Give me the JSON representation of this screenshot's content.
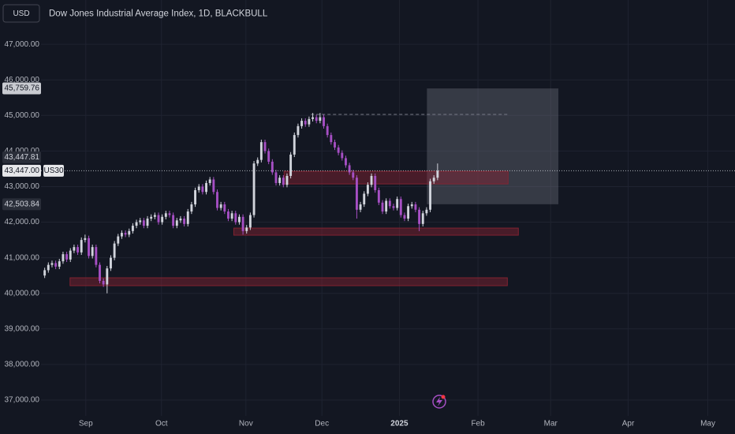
{
  "header": {
    "currency": "USD",
    "title": "Dow Jones Industrial Average Index, 1D, BLACKBULL"
  },
  "chart_data": {
    "type": "candlestick",
    "symbol": "US30",
    "open": [
      40500,
      40650,
      40800,
      40850,
      40750,
      40900,
      41100,
      40950,
      41200,
      41300,
      41150,
      41500,
      41550,
      41050,
      41300,
      40800,
      40350,
      40250,
      40700,
      41000,
      41400,
      41600,
      41700,
      41650,
      41750,
      41900,
      42000,
      42050,
      41900,
      42100,
      42150,
      42200,
      42000,
      42150,
      42250,
      42200,
      41900,
      42050,
      42100,
      41950,
      42300,
      42500,
      42900,
      43000,
      42850,
      43100,
      43200,
      42850,
      42400,
      42500,
      42300,
      42100,
      42250,
      42000,
      42150,
      41750,
      41850,
      42200,
      43650,
      43750,
      44250,
      44000,
      43700,
      43400,
      43100,
      43250,
      43050,
      43300,
      43900,
      44450,
      44700,
      44850,
      44750,
      44900,
      44950,
      44850,
      44950,
      44700,
      44450,
      44250,
      44100,
      43950,
      43800,
      43600,
      43400,
      43250,
      42350,
      42500,
      42800,
      43050,
      43300,
      42900,
      42550,
      42300,
      42600,
      42450,
      42400,
      42650,
      42200,
      42100,
      42450,
      42500,
      42350,
      41950,
      42250,
      42350,
      43150,
      43250
    ],
    "high": [
      40720,
      40870,
      40920,
      40920,
      40970,
      41170,
      41170,
      41270,
      41370,
      41370,
      41570,
      41650,
      41620,
      41370,
      41370,
      40870,
      40420,
      40770,
      41070,
      41470,
      41670,
      41770,
      41770,
      41820,
      41970,
      42070,
      42120,
      42120,
      42170,
      42220,
      42270,
      42270,
      42220,
      42320,
      42320,
      42270,
      42120,
      42170,
      42170,
      42370,
      42570,
      42970,
      43070,
      43070,
      43170,
      43270,
      43270,
      42920,
      42570,
      42570,
      42370,
      42320,
      42320,
      42220,
      42220,
      41920,
      42270,
      43720,
      43820,
      44320,
      44320,
      44070,
      43770,
      43470,
      43320,
      43320,
      43370,
      43970,
      44520,
      44770,
      44920,
      44920,
      44970,
      45070,
      45020,
      45070,
      45020,
      44770,
      44520,
      44320,
      44170,
      44020,
      43870,
      43670,
      43470,
      43320,
      42570,
      42870,
      43120,
      43370,
      43370,
      42970,
      42620,
      42670,
      42670,
      42520,
      42720,
      42720,
      42270,
      42520,
      42570,
      42570,
      42420,
      42320,
      42420,
      43220,
      43320,
      43650
    ],
    "low": [
      40430,
      40580,
      40730,
      40680,
      40680,
      40830,
      40880,
      40880,
      41130,
      41080,
      41080,
      41430,
      40980,
      40980,
      40730,
      40280,
      40180,
      40000,
      40630,
      40930,
      41330,
      41530,
      41580,
      41580,
      41680,
      41830,
      41930,
      41830,
      41830,
      42030,
      42080,
      41930,
      41930,
      42080,
      42130,
      41830,
      41830,
      41980,
      41880,
      41880,
      42230,
      42430,
      42830,
      42780,
      42780,
      43030,
      42780,
      42330,
      42330,
      42230,
      42030,
      42030,
      41930,
      41930,
      41650,
      41680,
      41780,
      42130,
      43580,
      43680,
      43930,
      43630,
      43330,
      43030,
      43030,
      42980,
      42980,
      43230,
      43830,
      44380,
      44630,
      44680,
      44680,
      44830,
      44780,
      44780,
      44630,
      44380,
      44180,
      44030,
      43880,
      43730,
      43530,
      43330,
      43180,
      42100,
      42280,
      42430,
      42730,
      42980,
      42830,
      42480,
      42230,
      42230,
      42380,
      42330,
      42330,
      42130,
      42030,
      42030,
      42380,
      42280,
      41750,
      41880,
      42180,
      42280,
      43080,
      43180
    ],
    "close": [
      40650,
      40800,
      40850,
      40750,
      40900,
      41100,
      40950,
      41200,
      41300,
      41150,
      41500,
      41550,
      41050,
      41300,
      40800,
      40350,
      40250,
      40700,
      41000,
      41400,
      41600,
      41700,
      41650,
      41750,
      41900,
      42000,
      42050,
      41900,
      42100,
      42150,
      42200,
      42000,
      42150,
      42250,
      42200,
      41900,
      42050,
      42100,
      41950,
      42300,
      42500,
      42900,
      43000,
      42850,
      43100,
      43200,
      42850,
      42400,
      42500,
      42300,
      42100,
      42250,
      42000,
      42150,
      41750,
      41850,
      42200,
      43650,
      43750,
      44250,
      44000,
      43700,
      43400,
      43100,
      43250,
      43050,
      43300,
      43900,
      44450,
      44700,
      44850,
      44750,
      44900,
      44950,
      44850,
      44950,
      44700,
      44450,
      44250,
      44100,
      43950,
      43800,
      43600,
      43400,
      43250,
      42350,
      42500,
      42800,
      43050,
      43300,
      42900,
      42550,
      42300,
      42600,
      42450,
      42400,
      42650,
      42200,
      42100,
      42450,
      42500,
      42350,
      41950,
      42250,
      42350,
      43150,
      43250,
      43447
    ],
    "up_color": "#d1d4dc",
    "down_color": "#a64fc4",
    "ylim": [
      36600,
      47580
    ],
    "yticks": [
      {
        "value": 37000,
        "label": "37,000.00"
      },
      {
        "value": 38000,
        "label": "38,000.00"
      },
      {
        "value": 39000,
        "label": "39,000.00"
      },
      {
        "value": 40000,
        "label": "40,000.00"
      },
      {
        "value": 41000,
        "label": "41,000.00"
      },
      {
        "value": 42000,
        "label": "42,000.00"
      },
      {
        "value": 43000,
        "label": "43,000.00"
      },
      {
        "value": 44000,
        "label": "44,000.00"
      },
      {
        "value": 45000,
        "label": "45,000.00"
      },
      {
        "value": 46000,
        "label": "46,000.00"
      },
      {
        "value": 47000,
        "label": "47,000.00"
      }
    ],
    "xlim": [
      -1,
      188
    ],
    "xticks": [
      {
        "value": 11.2,
        "label": "Sep"
      },
      {
        "value": 31.8,
        "label": "Oct"
      },
      {
        "value": 54.8,
        "label": "Nov"
      },
      {
        "value": 75.5,
        "label": "Dec"
      },
      {
        "value": 96.6,
        "label": "2025"
      },
      {
        "value": 118,
        "label": "Feb"
      },
      {
        "value": 137.8,
        "label": "Mar"
      },
      {
        "value": 158.9,
        "label": "Apr"
      },
      {
        "value": 180.6,
        "label": "May"
      }
    ],
    "grid": true,
    "price_labels": [
      {
        "value": 45759.76,
        "label": "45,759.76",
        "bg": "#c9cbd1",
        "fg": "#131722"
      },
      {
        "value": 43447.81,
        "label": "43,447.81",
        "bg": "#2a2e39",
        "fg": "#d1d4dc"
      },
      {
        "value": 43447,
        "label": "43,447.00",
        "bg": "#e6e7ea",
        "fg": "#131722"
      },
      {
        "value": 42503.84,
        "label": "42,503.84",
        "bg": "#2a2e39",
        "fg": "#d1d4dc"
      }
    ],
    "zones": [
      {
        "x0": 65.2,
        "x1": 126.2,
        "y0": 43075,
        "y1": 43430
      },
      {
        "x0": 51.5,
        "x1": 129,
        "y0": 41634,
        "y1": 41834
      },
      {
        "x0": 6.9,
        "x1": 126,
        "y0": 40215,
        "y1": 40437
      }
    ],
    "zone_color": "#8a2432",
    "projection": {
      "x0": 104.1,
      "x1": 139.9,
      "y0": 42503.84,
      "y1": 45759.76
    },
    "dashed_level": {
      "value": 45030,
      "x0": 72.5,
      "x1": 126.2
    }
  }
}
